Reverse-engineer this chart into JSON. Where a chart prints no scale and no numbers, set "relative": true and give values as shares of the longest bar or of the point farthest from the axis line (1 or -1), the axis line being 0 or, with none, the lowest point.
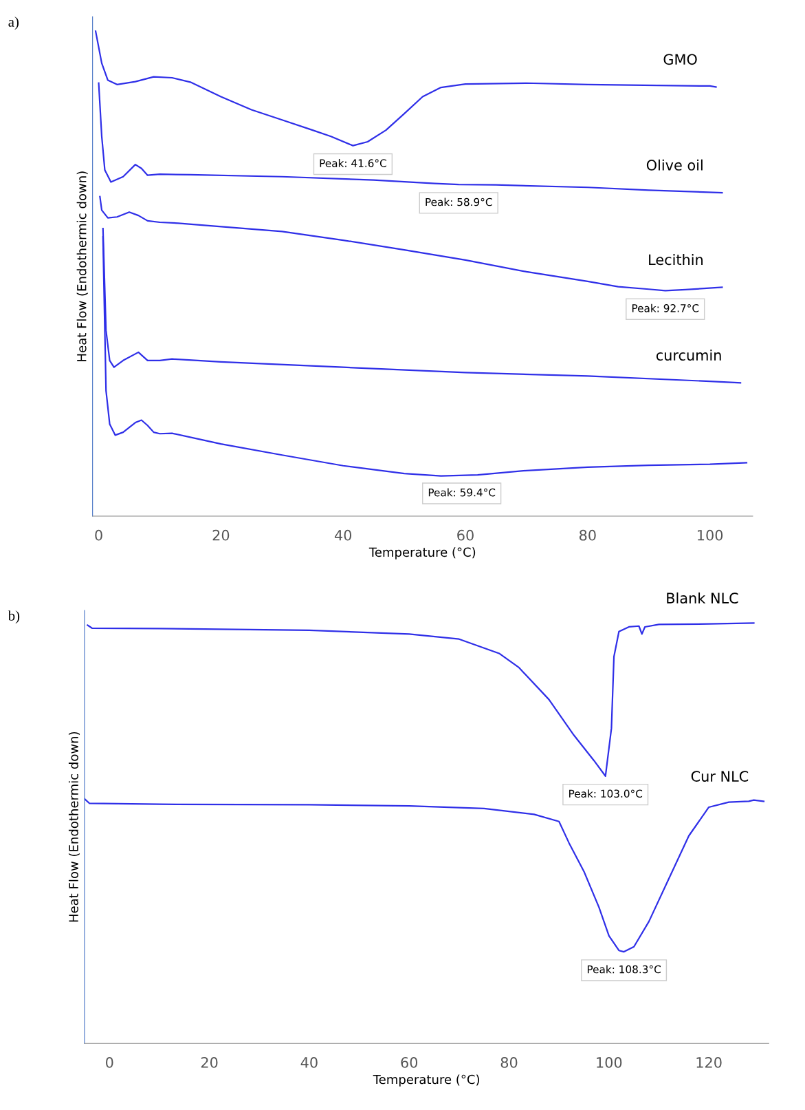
{
  "chart_data": [
    {
      "type": "line",
      "title": "a)",
      "xlabel": "Temperature (°C)",
      "ylabel": "Heat Flow (Endothermic down)",
      "relative": true,
      "xlim": [
        -1,
        107
      ],
      "xticks": [
        0,
        20,
        40,
        60,
        80,
        100
      ],
      "series": [
        {
          "name": "GMO",
          "color": "#2f2fe8",
          "x": [
            -0.5,
            0.5,
            1.5,
            3,
            6,
            9,
            12,
            15,
            20,
            25,
            30,
            35,
            38,
            41.6,
            44,
            47,
            50,
            53,
            56,
            60,
            70,
            80,
            100,
            101
          ],
          "values": [
            1.0,
            0.934,
            0.899,
            0.89,
            0.896,
            0.906,
            0.904,
            0.895,
            0.865,
            0.838,
            0.817,
            0.796,
            0.783,
            0.764,
            0.772,
            0.796,
            0.83,
            0.865,
            0.884,
            0.891,
            0.893,
            0.89,
            0.887,
            0.885
          ]
        },
        {
          "name": "Olive oil",
          "color": "#2f2fe8",
          "x": [
            0,
            0.5,
            1,
            2,
            4,
            6,
            7,
            8,
            10,
            15,
            30,
            45,
            55,
            58.9,
            65,
            80,
            90,
            102
          ],
          "values": [
            0.893,
            0.783,
            0.714,
            0.689,
            0.7,
            0.725,
            0.717,
            0.703,
            0.705,
            0.704,
            0.7,
            0.693,
            0.686,
            0.684,
            0.683,
            0.678,
            0.672,
            0.667
          ]
        },
        {
          "name": "Lecithin",
          "color": "#2f2fe8",
          "x": [
            0.2,
            0.5,
            1.5,
            3,
            5,
            6.5,
            8,
            10,
            13,
            30,
            40,
            50,
            60,
            70,
            80,
            85,
            90,
            92.7,
            96,
            102
          ],
          "values": [
            0.659,
            0.631,
            0.615,
            0.617,
            0.627,
            0.62,
            0.609,
            0.606,
            0.604,
            0.587,
            0.569,
            0.549,
            0.528,
            0.504,
            0.484,
            0.473,
            0.468,
            0.465,
            0.467,
            0.472
          ]
        },
        {
          "name": "curcumin",
          "color": "#2f2fe8",
          "x": [
            0.7,
            1.2,
            1.8,
            2.5,
            4,
            6.5,
            8,
            10,
            12,
            20,
            40,
            60,
            80,
            100,
            105
          ],
          "values": [
            0.593,
            0.383,
            0.321,
            0.307,
            0.321,
            0.338,
            0.321,
            0.321,
            0.324,
            0.318,
            0.307,
            0.296,
            0.289,
            0.278,
            0.275
          ]
        },
        {
          "color": "#2f2fe8",
          "x": [
            0.7,
            1.2,
            1.8,
            2.7,
            4,
            6,
            7,
            8,
            9,
            10,
            12,
            20,
            30,
            40,
            50,
            56,
            62,
            70,
            80,
            90,
            100,
            106
          ],
          "values": [
            0.576,
            0.259,
            0.19,
            0.167,
            0.173,
            0.193,
            0.198,
            0.187,
            0.173,
            0.17,
            0.171,
            0.149,
            0.126,
            0.104,
            0.088,
            0.083,
            0.085,
            0.094,
            0.101,
            0.105,
            0.107,
            0.11
          ]
        }
      ],
      "annotations": [
        {
          "text": "Peak: 41.6°C",
          "x": 41.6,
          "y": 0.764
        },
        {
          "text": "Peak: 58.9°C",
          "x": 58.9,
          "y": 0.684
        },
        {
          "text": "Peak: 92.7°C",
          "x": 92.7,
          "y": 0.465
        },
        {
          "text": "Peak: 59.4°C",
          "x": 59.4,
          "y": 0.085
        }
      ]
    },
    {
      "type": "line",
      "title": "b)",
      "xlabel": "Temperature (°C)",
      "ylabel": "Heat Flow (Endothermic down)",
      "relative": true,
      "xlim": [
        -5,
        132
      ],
      "xticks": [
        0,
        20,
        40,
        60,
        80,
        100,
        120
      ],
      "series": [
        {
          "name": "Blank NLC",
          "color": "#2f2fe8",
          "x": [
            -4.4,
            -3.5,
            10,
            40,
            60,
            70,
            78,
            82,
            88,
            93,
            97,
            99.3,
            100.5,
            101,
            102,
            104,
            106,
            106.6,
            107.2,
            110,
            120,
            129
          ],
          "values": [
            0.995,
            0.988,
            0.987,
            0.983,
            0.974,
            0.962,
            0.928,
            0.894,
            0.818,
            0.733,
            0.673,
            0.636,
            0.75,
            0.92,
            0.98,
            0.991,
            0.993,
            0.974,
            0.991,
            0.997,
            0.998,
            1.0
          ]
        },
        {
          "name": "Cur NLC",
          "color": "#2f2fe8",
          "x": [
            -5,
            -4,
            10,
            40,
            60,
            75,
            85,
            90,
            92,
            95,
            98,
            100,
            102,
            103,
            105,
            108,
            112,
            116,
            120,
            124,
            128,
            129,
            131
          ],
          "values": [
            0.582,
            0.571,
            0.569,
            0.568,
            0.565,
            0.559,
            0.545,
            0.528,
            0.477,
            0.409,
            0.324,
            0.256,
            0.221,
            0.218,
            0.23,
            0.29,
            0.392,
            0.494,
            0.562,
            0.574,
            0.576,
            0.579,
            0.576
          ]
        }
      ],
      "annotations": [
        {
          "text": "Peak: 103.0°C",
          "x": 99.3,
          "y": 0.636
        },
        {
          "text": "Peak: 108.3°C",
          "x": 103,
          "y": 0.218
        }
      ]
    }
  ]
}
